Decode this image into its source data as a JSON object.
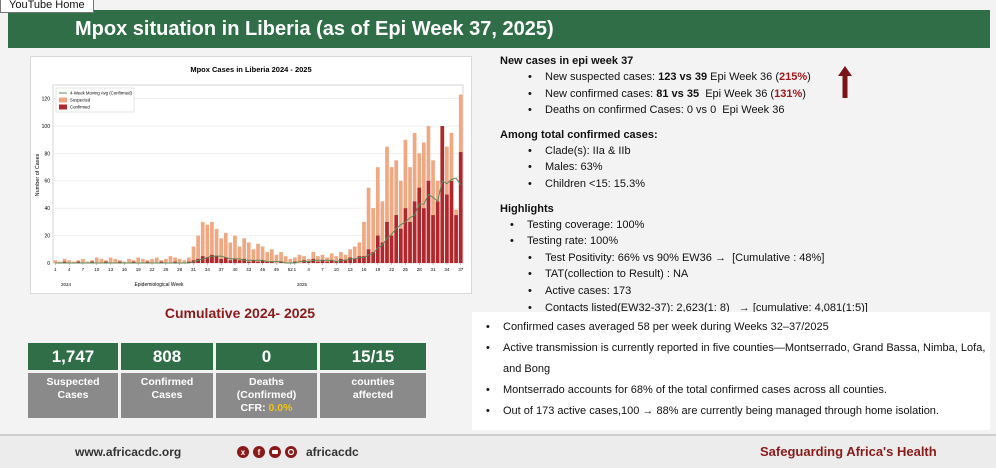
{
  "tab": "YouTube Home",
  "header": {
    "title": "Mpox situation in Liberia (as of Epi Week 37, 2025)"
  },
  "chart_data": {
    "type": "bar",
    "title": "Mpox Cases in Liberia 2024 - 2025",
    "xlabel": "Epidemiological Week",
    "ylabel": "Number of Cases",
    "year_labels": [
      "2024",
      "2025"
    ],
    "categories": [
      "1",
      null,
      null,
      "4",
      null,
      null,
      "7",
      null,
      null,
      "10",
      null,
      null,
      "13",
      null,
      null,
      "16",
      null,
      null,
      "19",
      null,
      null,
      "22",
      null,
      null,
      "25",
      null,
      null,
      "28",
      null,
      null,
      "31",
      null,
      null,
      "34",
      null,
      null,
      "37",
      null,
      null,
      "40",
      null,
      null,
      "43",
      null,
      null,
      "46",
      null,
      null,
      "49",
      null,
      null,
      "52",
      "1",
      null,
      null,
      "4",
      null,
      null,
      "7",
      null,
      null,
      "10",
      null,
      null,
      "13",
      null,
      null,
      "16",
      null,
      null,
      "19",
      null,
      null,
      "22",
      null,
      null,
      "25",
      null,
      null,
      "28",
      null,
      null,
      "31",
      null,
      null,
      "34",
      null,
      null,
      "37"
    ],
    "series": [
      {
        "name": "Suspected",
        "color": "#f0a882",
        "kind": "bar",
        "values": [
          2,
          1,
          3,
          2,
          1,
          2,
          3,
          1,
          2,
          4,
          3,
          2,
          4,
          3,
          2,
          1,
          3,
          2,
          4,
          3,
          2,
          3,
          4,
          2,
          3,
          5,
          4,
          3,
          2,
          4,
          12,
          20,
          30,
          28,
          30,
          25,
          18,
          22,
          15,
          20,
          12,
          18,
          15,
          10,
          14,
          12,
          8,
          10,
          6,
          8,
          5,
          3,
          4,
          6,
          5,
          3,
          8,
          5,
          6,
          4,
          7,
          5,
          8,
          6,
          10,
          12,
          15,
          30,
          55,
          40,
          70,
          45,
          85,
          70,
          75,
          60,
          90,
          70,
          95,
          80,
          88,
          100,
          75,
          60,
          100,
          85,
          95,
          39,
          123
        ]
      },
      {
        "name": "Confirmed",
        "color": "#b0282e",
        "kind": "bar",
        "values": [
          0,
          0,
          1,
          0,
          0,
          1,
          0,
          0,
          1,
          0,
          0,
          1,
          0,
          0,
          1,
          0,
          0,
          1,
          0,
          0,
          1,
          0,
          0,
          1,
          0,
          0,
          1,
          0,
          0,
          1,
          2,
          3,
          5,
          4,
          6,
          5,
          3,
          4,
          2,
          3,
          2,
          3,
          1,
          2,
          1,
          2,
          1,
          1,
          0,
          1,
          0,
          0,
          1,
          0,
          2,
          1,
          3,
          1,
          2,
          1,
          2,
          1,
          3,
          2,
          4,
          3,
          5,
          5,
          10,
          8,
          20,
          15,
          30,
          20,
          35,
          25,
          40,
          30,
          45,
          55,
          40,
          60,
          35,
          45,
          100,
          50,
          60,
          35,
          81
        ]
      },
      {
        "name": "4-Week Moving Avg (Confirmed)",
        "color": "#5b8a5b",
        "kind": "line",
        "values": [
          0,
          0,
          0,
          0,
          0,
          0,
          0,
          0,
          0,
          0,
          0,
          0,
          0,
          0,
          0,
          0,
          0,
          0,
          0,
          0,
          0,
          0,
          0,
          0,
          0,
          0,
          0,
          0,
          0,
          0,
          1,
          2,
          3,
          4,
          5,
          5,
          5,
          4,
          3,
          3,
          3,
          2,
          2,
          2,
          2,
          2,
          1,
          1,
          1,
          1,
          0,
          0,
          0,
          1,
          1,
          1,
          2,
          2,
          2,
          2,
          2,
          1,
          2,
          2,
          3,
          3,
          4,
          4,
          6,
          7,
          11,
          13,
          18,
          21,
          25,
          28,
          30,
          33,
          35,
          43,
          43,
          50,
          48,
          45,
          60,
          58,
          61,
          62,
          57
        ]
      }
    ],
    "ylim": [
      0,
      130
    ],
    "yticks": [
      0,
      20,
      40,
      60,
      80,
      100,
      120
    ],
    "grid": true,
    "legend": "upper-left"
  },
  "summary": {
    "sections": [
      {
        "heading": "New cases in epi week 37",
        "items": [
          {
            "level": 2,
            "segments": [
              {
                "text": "New suspected cases: "
              },
              {
                "text": "123 vs 39",
                "style": "bold"
              },
              {
                "text": " Epi Week 36 ("
              },
              {
                "text": "215%",
                "style": "bold-red"
              },
              {
                "text": ")"
              }
            ]
          },
          {
            "level": 2,
            "segments": [
              {
                "text": "New confirmed cases: "
              },
              {
                "text": "81 vs 35",
                "style": "bold"
              },
              {
                "text": "  Epi Week 36 ("
              },
              {
                "text": "131%",
                "style": "bold-red"
              },
              {
                "text": ")"
              }
            ]
          },
          {
            "level": 2,
            "segments": [
              {
                "text": "Deaths on confirmed Cases: 0 vs 0  Epi Week 36"
              }
            ]
          }
        ]
      },
      {
        "heading": "Among total confirmed cases:",
        "items": [
          {
            "level": 2,
            "segments": [
              {
                "text": "Clade(s): IIa & IIb"
              }
            ]
          },
          {
            "level": 2,
            "segments": [
              {
                "text": "Males: 63%"
              }
            ]
          },
          {
            "level": 2,
            "segments": [
              {
                "text": "Children <15: 15.3%"
              }
            ]
          }
        ]
      },
      {
        "heading": "Highlights",
        "items": [
          {
            "level": 1,
            "segments": [
              {
                "text": "Testing coverage: 100%"
              }
            ]
          },
          {
            "level": 1,
            "segments": [
              {
                "text": "Testing rate: 100%"
              }
            ]
          },
          {
            "level": 2,
            "segments": [
              {
                "text": "Test Positivity: 66% vs 90% EW36 →  [Cumulative : 48%]"
              }
            ]
          },
          {
            "level": 2,
            "segments": [
              {
                "text": "TAT(collection to Result) : NA"
              }
            ]
          },
          {
            "level": 2,
            "segments": [
              {
                "text": "Active cases: 173"
              }
            ]
          },
          {
            "level": 2,
            "segments": [
              {
                "text": "Contacts listed(EW32-37): 2,623(1: 8)   → [cumulative: 4,081(1:5)]"
              }
            ]
          }
        ]
      }
    ]
  },
  "cumulative": {
    "title": "Cumulative 2024- 2025",
    "boxes": [
      {
        "value": "1,747",
        "label": "Suspected Cases"
      },
      {
        "value": "808",
        "label": "Confirmed Cases"
      },
      {
        "value": "0",
        "label": "Deaths (Confirmed)",
        "cfr_label": "CFR: ",
        "cfr_value": "0.0%"
      },
      {
        "value": "15/15",
        "label": "counties affected"
      }
    ]
  },
  "key_points": [
    "Confirmed cases averaged 58 per week during Weeks 32–37/2025",
    "Active transmission is currently reported in five counties—Montserrado, Grand Bassa, Nimba, Lofa, and Bong",
    "Montserrado accounts for 68% of the total confirmed cases across all counties.",
    "Out of 173 active cases,100 → 88% are currently being managed through home isolation."
  ],
  "footer": {
    "website": "www.africacdc.org",
    "handle": "africacdc",
    "slogan": "Safeguarding Africa's Health"
  }
}
